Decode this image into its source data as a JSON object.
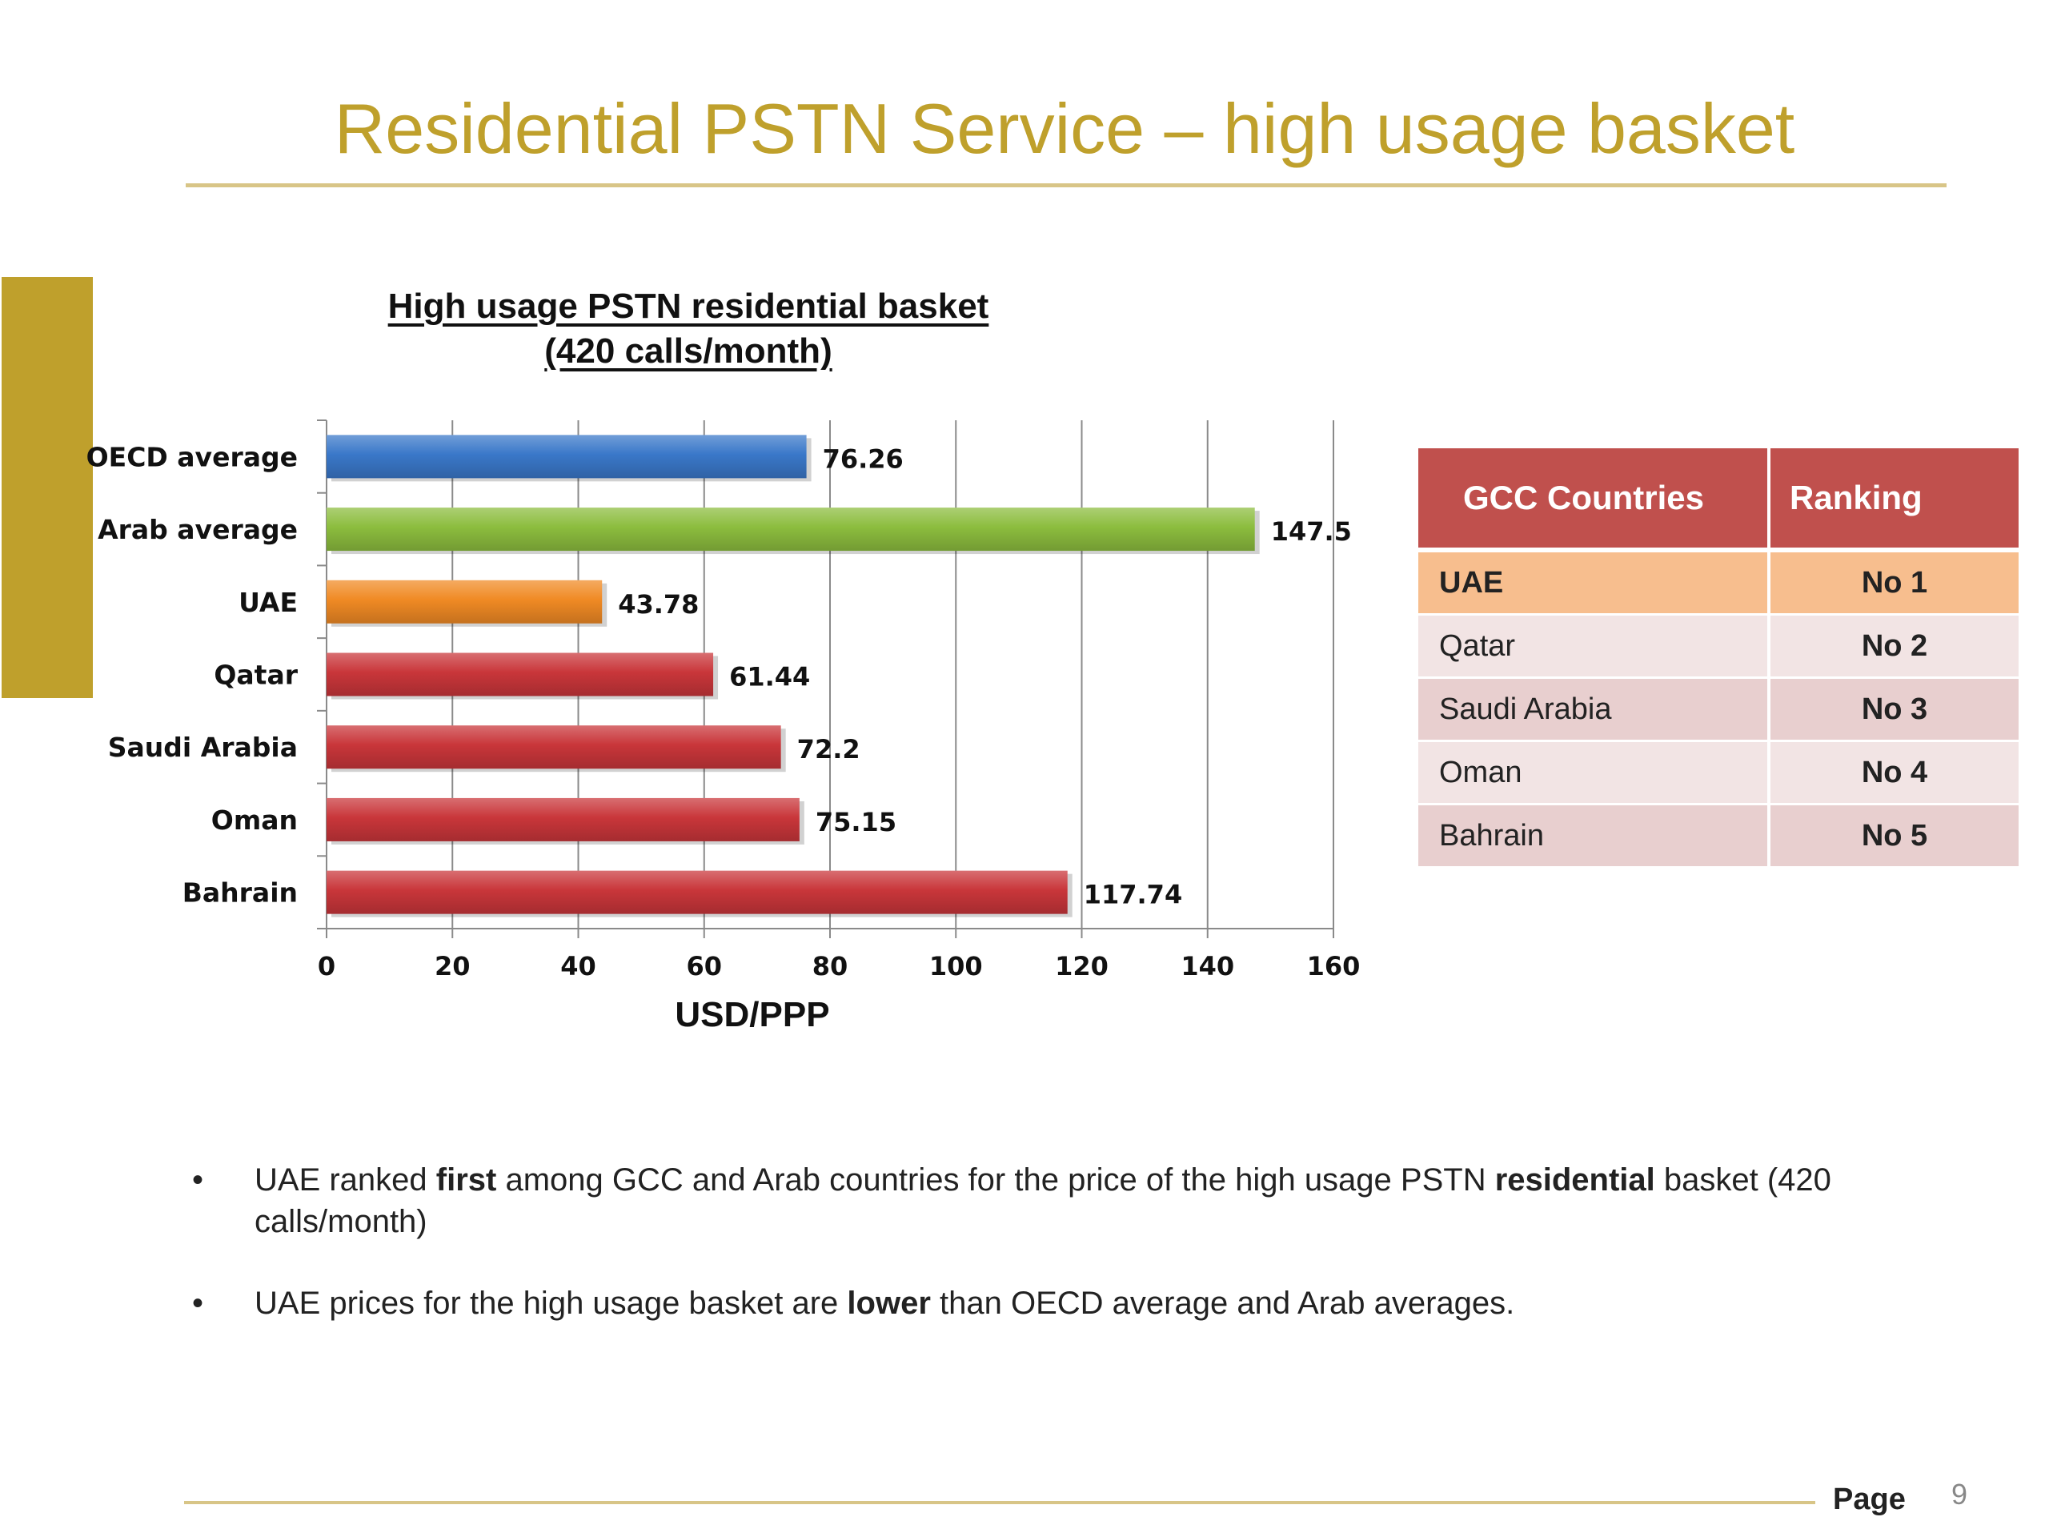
{
  "slide": {
    "title": "Residential PSTN Service – high usage basket"
  },
  "chart_data": {
    "type": "bar",
    "orientation": "horizontal",
    "title_line1": "High usage PSTN residential basket",
    "title_line2": "(420 calls/month)",
    "xlabel": "USD/PPP",
    "ylabel": "",
    "xlim": [
      0,
      160
    ],
    "x_ticks": [
      0,
      20,
      40,
      60,
      80,
      100,
      120,
      140,
      160
    ],
    "grid": "vertical",
    "categories": [
      "OECD average",
      "Arab average",
      "UAE",
      "Qatar",
      "Saudi Arabia",
      "Oman",
      "Bahrain"
    ],
    "values": [
      76.26,
      147.5,
      43.78,
      61.44,
      72.2,
      75.15,
      117.74
    ],
    "value_labels": [
      "76.26",
      "147.5",
      "43.78",
      "61.44",
      "72.2",
      "75.15",
      "117.74"
    ],
    "bar_colors": [
      "#3a78c9",
      "#8cbd3e",
      "#f08a24",
      "#c9363a",
      "#c9363a",
      "#c9363a",
      "#c9363a"
    ]
  },
  "table": {
    "headers": [
      "GCC Countries",
      "Ranking"
    ],
    "rows": [
      {
        "country": "UAE",
        "rank": "No 1"
      },
      {
        "country": "Qatar",
        "rank": "No 2"
      },
      {
        "country": "Saudi Arabia",
        "rank": "No 3"
      },
      {
        "country": "Oman",
        "rank": "No 4"
      },
      {
        "country": "Bahrain",
        "rank": "No 5"
      }
    ],
    "header_color": "#c0504d",
    "highlight_color": "#f7be8e"
  },
  "bullets": [
    {
      "marker": "•",
      "parts": [
        {
          "text": "UAE ranked ",
          "bold": false
        },
        {
          "text": "first",
          "bold": true
        },
        {
          "text": " among GCC and Arab countries for the price of the high usage PSTN ",
          "bold": false
        },
        {
          "text": "residential",
          "bold": true
        },
        {
          "text": " basket (420 calls/month)",
          "bold": false
        }
      ]
    },
    {
      "marker": "•",
      "parts": [
        {
          "text": "UAE prices for the high usage basket are ",
          "bold": false
        },
        {
          "text": "lower",
          "bold": true
        },
        {
          "text": " than OECD average and Arab averages.",
          "bold": false
        }
      ]
    }
  ],
  "footer": {
    "page_label": "Page",
    "page_number": "9"
  },
  "colors": {
    "title_gold": "#bfa02c",
    "rule_gold": "#d8c587"
  }
}
